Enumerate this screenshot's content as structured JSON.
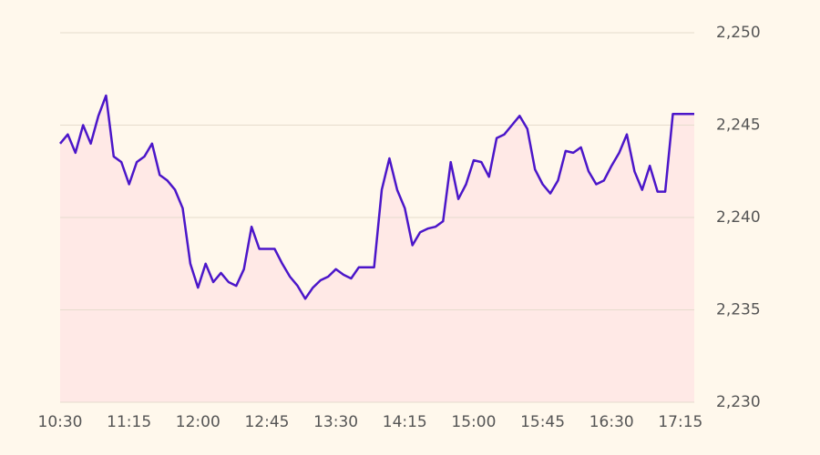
{
  "chart_data": {
    "type": "line",
    "x": [
      "10:30",
      "10:35",
      "10:40",
      "10:45",
      "10:50",
      "10:55",
      "11:00",
      "11:05",
      "11:10",
      "11:15",
      "11:20",
      "11:25",
      "11:30",
      "11:35",
      "11:40",
      "11:45",
      "11:50",
      "11:55",
      "12:00",
      "12:05",
      "12:10",
      "12:15",
      "12:20",
      "12:25",
      "12:30",
      "12:35",
      "12:40",
      "12:45",
      "12:50",
      "12:55",
      "13:00",
      "13:05",
      "13:10",
      "13:15",
      "13:20",
      "13:25",
      "13:30",
      "13:35",
      "13:40",
      "13:45",
      "13:50",
      "13:55",
      "14:00",
      "14:05",
      "14:10",
      "14:15",
      "14:20",
      "14:25",
      "14:30",
      "14:35",
      "14:40",
      "14:45",
      "14:50",
      "14:55",
      "15:00",
      "15:05",
      "15:10",
      "15:15",
      "15:20",
      "15:25",
      "15:30",
      "15:35",
      "15:40",
      "15:45",
      "15:50",
      "15:55",
      "16:00",
      "16:05",
      "16:10",
      "16:15",
      "16:20",
      "16:25",
      "16:30",
      "16:35",
      "16:40",
      "16:45",
      "16:50",
      "16:55",
      "17:00",
      "17:05",
      "17:10",
      "17:15",
      "17:20",
      "17:24"
    ],
    "series": [
      {
        "color": "#4b16c9",
        "fill": "#ffe9e6",
        "values": [
          2244.0,
          2244.5,
          2243.5,
          2245.0,
          2244.0,
          2245.5,
          2246.6,
          2243.3,
          2243.0,
          2241.8,
          2243.0,
          2243.3,
          2244.0,
          2242.3,
          2242.0,
          2241.5,
          2240.5,
          2237.5,
          2236.2,
          2237.5,
          2236.5,
          2237.0,
          2236.5,
          2236.3,
          2237.2,
          2239.5,
          2238.3,
          2238.3,
          2238.3,
          2237.5,
          2236.8,
          2236.3,
          2235.6,
          2236.2,
          2236.6,
          2236.8,
          2237.2,
          2236.9,
          2236.7,
          2237.3,
          2237.3,
          2237.3,
          2241.5,
          2243.2,
          2241.5,
          2240.5,
          2238.5,
          2239.2,
          2239.4,
          2239.5,
          2239.8,
          2243.0,
          2241.0,
          2241.8,
          2243.1,
          2243.0,
          2242.2,
          2244.3,
          2244.5,
          2245.0,
          2245.5,
          2244.8,
          2242.6,
          2241.8,
          2241.3,
          2242.0,
          2243.6,
          2243.5,
          2243.8,
          2242.5,
          2241.8,
          2242.0,
          2242.8,
          2243.5,
          2244.5,
          2242.5,
          2241.5,
          2242.8,
          2241.4,
          2241.4,
          2245.6,
          2245.6,
          2245.6,
          2245.6
        ]
      }
    ],
    "xlim": [
      "10:30",
      "17:24"
    ],
    "xticks": [
      "10:30",
      "11:15",
      "12:00",
      "12:45",
      "13:30",
      "14:15",
      "15:00",
      "15:45",
      "16:30",
      "17:15"
    ],
    "ylim": [
      2230,
      2250
    ],
    "yticks": [
      {
        "value": 2230,
        "label": "2,230"
      },
      {
        "value": 2235,
        "label": "2,235"
      },
      {
        "value": 2240,
        "label": "2,240"
      },
      {
        "value": 2245,
        "label": "2,245"
      },
      {
        "value": 2250,
        "label": "2,250"
      }
    ],
    "grid": true
  }
}
